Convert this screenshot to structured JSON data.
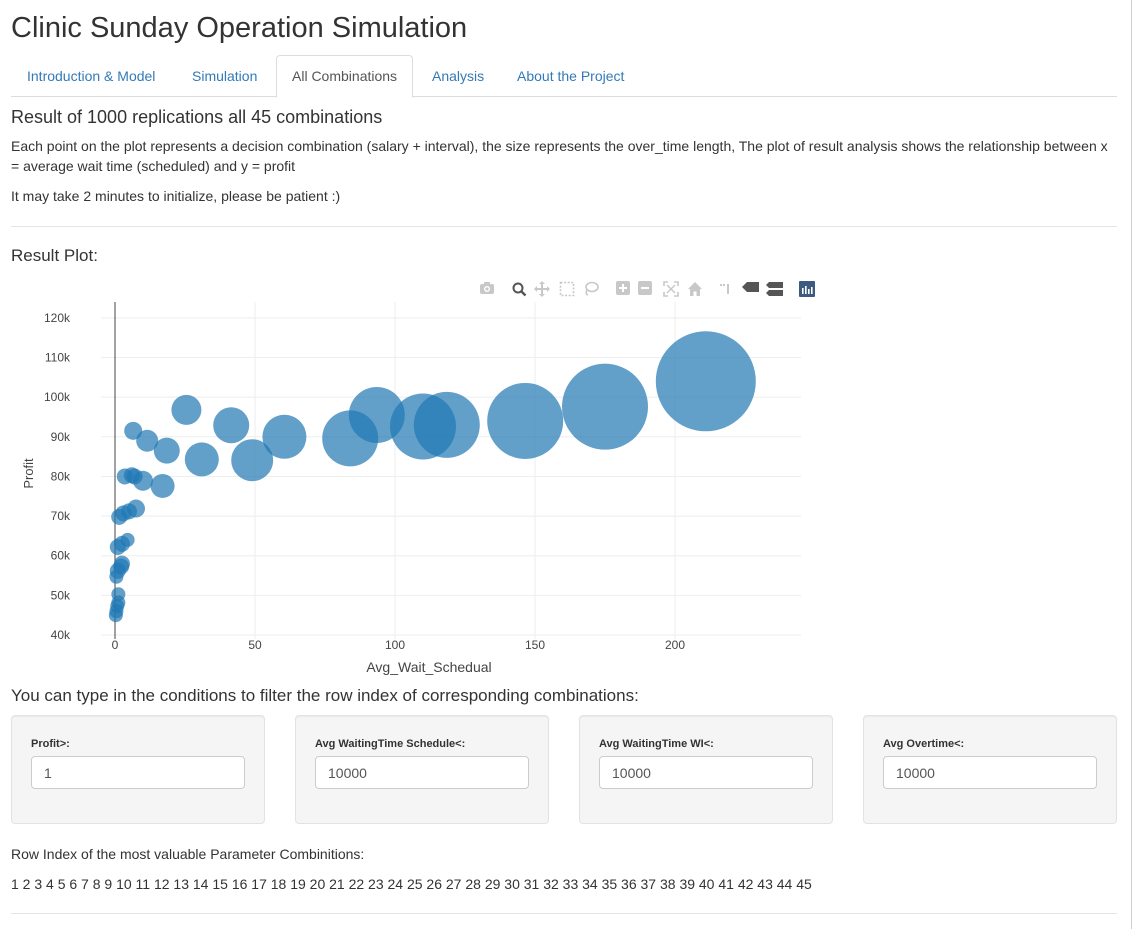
{
  "app": {
    "title": "Clinic Sunday Operation Simulation"
  },
  "tabs": [
    {
      "label": "Introduction & Model",
      "active": false
    },
    {
      "label": "Simulation",
      "active": false
    },
    {
      "label": "All Combinations",
      "active": true
    },
    {
      "label": "Analysis",
      "active": false
    },
    {
      "label": "About the Project",
      "active": false
    }
  ],
  "section": {
    "title": "Result of 1000 replications all 45 combinations",
    "description": "Each point on the plot represents a decision combination (salary + interval), the size represents the over_time length, The plot of result analysis shows the relationship between x = average wait time (scheduled) and y = profit",
    "note": "It may take 2 minutes to initialize, please be patient :)"
  },
  "plot": {
    "heading": "Result Plot:",
    "modebar_icons": [
      "camera-icon",
      "zoom-icon",
      "pan-icon",
      "box-select-icon",
      "lasso-select-icon",
      "zoom-in-icon",
      "zoom-out-icon",
      "autoscale-icon",
      "reset-axes-icon",
      "spike-lines-icon",
      "hover-closest-icon",
      "hover-compare-icon",
      "plotly-logo-icon"
    ]
  },
  "chart_data": {
    "type": "scatter",
    "xlabel": "Avg_Wait_Schedual",
    "ylabel": "Profit",
    "xlim": [
      -5,
      245
    ],
    "ylim": [
      39000,
      124000
    ],
    "x_ticks": [
      0,
      50,
      100,
      150,
      200
    ],
    "x_tick_labels": [
      "0",
      "50",
      "100",
      "150",
      "200"
    ],
    "y_ticks": [
      40000,
      50000,
      60000,
      70000,
      80000,
      90000,
      100000,
      110000,
      120000
    ],
    "y_tick_labels": [
      "40k",
      "50k",
      "60k",
      "70k",
      "80k",
      "90k",
      "100k",
      "110k",
      "120k"
    ],
    "grid": true,
    "marker_color": "#1f77b4",
    "size_variable": "over_time length",
    "points": [
      {
        "x": 0.3,
        "y": 45000,
        "r": 7
      },
      {
        "x": 0.5,
        "y": 46000,
        "r": 7
      },
      {
        "x": 0.8,
        "y": 47300,
        "r": 7
      },
      {
        "x": 1.2,
        "y": 48200,
        "r": 7
      },
      {
        "x": 1.2,
        "y": 50300,
        "r": 7
      },
      {
        "x": 0.5,
        "y": 54700,
        "r": 7
      },
      {
        "x": 1.0,
        "y": 56200,
        "r": 8
      },
      {
        "x": 2.2,
        "y": 57300,
        "r": 8
      },
      {
        "x": 2.5,
        "y": 58000,
        "r": 8
      },
      {
        "x": 1.0,
        "y": 62200,
        "r": 8
      },
      {
        "x": 2.5,
        "y": 63000,
        "r": 8
      },
      {
        "x": 4.5,
        "y": 64000,
        "r": 7
      },
      {
        "x": 1.5,
        "y": 69800,
        "r": 8
      },
      {
        "x": 3.0,
        "y": 70700,
        "r": 8
      },
      {
        "x": 5.0,
        "y": 71200,
        "r": 8
      },
      {
        "x": 7.5,
        "y": 71900,
        "r": 9
      },
      {
        "x": 3.5,
        "y": 80000,
        "r": 8
      },
      {
        "x": 6.0,
        "y": 80300,
        "r": 8
      },
      {
        "x": 7.0,
        "y": 80000,
        "r": 8
      },
      {
        "x": 10.0,
        "y": 78900,
        "r": 10
      },
      {
        "x": 17.0,
        "y": 77600,
        "r": 12
      },
      {
        "x": 6.5,
        "y": 91500,
        "r": 9
      },
      {
        "x": 11.5,
        "y": 89000,
        "r": 11
      },
      {
        "x": 18.5,
        "y": 86500,
        "r": 13
      },
      {
        "x": 25.5,
        "y": 96800,
        "r": 15
      },
      {
        "x": 31.0,
        "y": 84300,
        "r": 17
      },
      {
        "x": 41.5,
        "y": 92900,
        "r": 18
      },
      {
        "x": 49.0,
        "y": 84100,
        "r": 21
      },
      {
        "x": 60.5,
        "y": 90000,
        "r": 22
      },
      {
        "x": 84.0,
        "y": 89600,
        "r": 28
      },
      {
        "x": 93.5,
        "y": 95500,
        "r": 28
      },
      {
        "x": 110.0,
        "y": 92600,
        "r": 33
      },
      {
        "x": 118.5,
        "y": 93000,
        "r": 33
      },
      {
        "x": 146.5,
        "y": 94000,
        "r": 38
      },
      {
        "x": 175.0,
        "y": 97600,
        "r": 43
      },
      {
        "x": 211.0,
        "y": 104000,
        "r": 50
      }
    ]
  },
  "filters": {
    "heading": "You can type in the conditions to filter the row index of corresponding combinations:",
    "fields": [
      {
        "label": "Profit>:",
        "value": "1"
      },
      {
        "label": "Avg WaitingTime Schedule<:",
        "value": "10000"
      },
      {
        "label": "Avg WaitingTime WI<:",
        "value": "10000"
      },
      {
        "label": "Avg Overtime<:",
        "value": "10000"
      }
    ]
  },
  "result": {
    "label": "Row Index of the most valuable Parameter Combinitions:",
    "values": "1 2 3 4 5 6 7 8 9 10 11 12 13 14 15 16 17 18 19 20 21 22 23 24 25 26 27 28 29 30 31 32 33 34 35 36 37 38 39 40 41 42 43 44 45"
  }
}
